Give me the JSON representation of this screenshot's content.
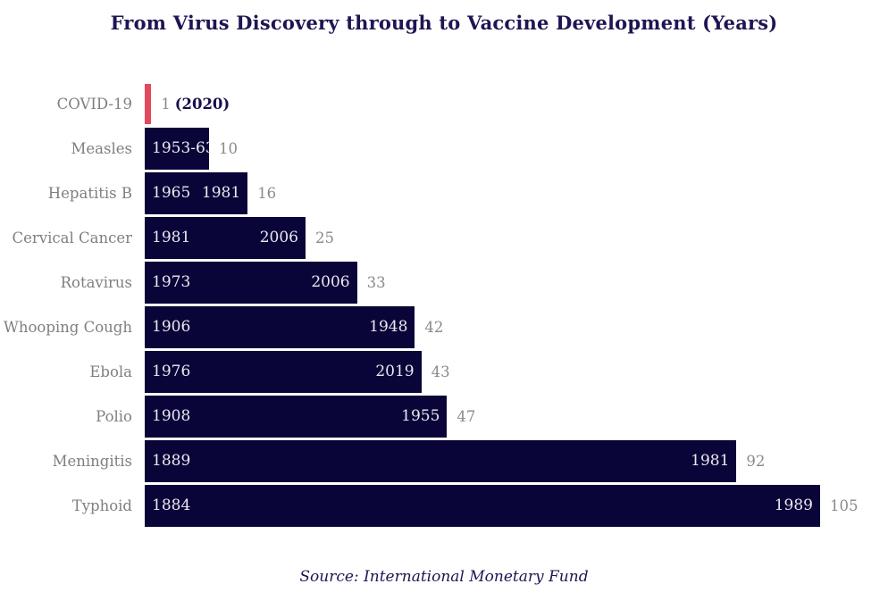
{
  "title": "From Virus Discovery through to Vaccine Development (Years)",
  "source_caption": "Source: International Monetary Fund",
  "colors": {
    "bar_navy": "#0a0538",
    "covid_red": "#e2495c",
    "label_gray": "#7f7f7f",
    "inbar_text": "#eae8f1",
    "title_navy": "#1d1653"
  },
  "chart_data": {
    "type": "bar",
    "orientation": "horizontal",
    "title": "From Virus Discovery through to Vaccine Development (Years)",
    "xlabel": "",
    "ylabel": "",
    "xlim": [
      0,
      105
    ],
    "grid": false,
    "legend": false,
    "categories": [
      "COVID-19",
      "Measles",
      "Hepatitis B",
      "Cervical Cancer",
      "Rotavirus",
      "Whooping Cough",
      "Ebola",
      "Polio",
      "Meningitis",
      "Typhoid"
    ],
    "values": [
      1,
      10,
      16,
      25,
      33,
      42,
      43,
      47,
      92,
      105
    ],
    "rows": [
      {
        "label": "COVID-19",
        "value": 1,
        "value_label": "1",
        "annotation": "(2020)",
        "start_year": "",
        "end_year": "",
        "highlight": true
      },
      {
        "label": "Measles",
        "value": 10,
        "value_label": "10",
        "annotation": "",
        "start_year": "1953-63",
        "end_year": "",
        "highlight": false
      },
      {
        "label": "Hepatitis B",
        "value": 16,
        "value_label": "16",
        "annotation": "",
        "start_year": "1965",
        "end_year": "1981",
        "highlight": false
      },
      {
        "label": "Cervical Cancer",
        "value": 25,
        "value_label": "25",
        "annotation": "",
        "start_year": "1981",
        "end_year": "2006",
        "highlight": false
      },
      {
        "label": "Rotavirus",
        "value": 33,
        "value_label": "33",
        "annotation": "",
        "start_year": "1973",
        "end_year": "2006",
        "highlight": false
      },
      {
        "label": "Whooping Cough",
        "value": 42,
        "value_label": "42",
        "annotation": "",
        "start_year": "1906",
        "end_year": "1948",
        "highlight": false
      },
      {
        "label": "Ebola",
        "value": 43,
        "value_label": "43",
        "annotation": "",
        "start_year": "1976",
        "end_year": "2019",
        "highlight": false
      },
      {
        "label": "Polio",
        "value": 47,
        "value_label": "47",
        "annotation": "",
        "start_year": "1908",
        "end_year": "1955",
        "highlight": false
      },
      {
        "label": "Meningitis",
        "value": 92,
        "value_label": "92",
        "annotation": "",
        "start_year": "1889",
        "end_year": "1981",
        "highlight": false
      },
      {
        "label": "Typhoid",
        "value": 105,
        "value_label": "105",
        "annotation": "",
        "start_year": "1884",
        "end_year": "1989",
        "highlight": false
      }
    ]
  }
}
